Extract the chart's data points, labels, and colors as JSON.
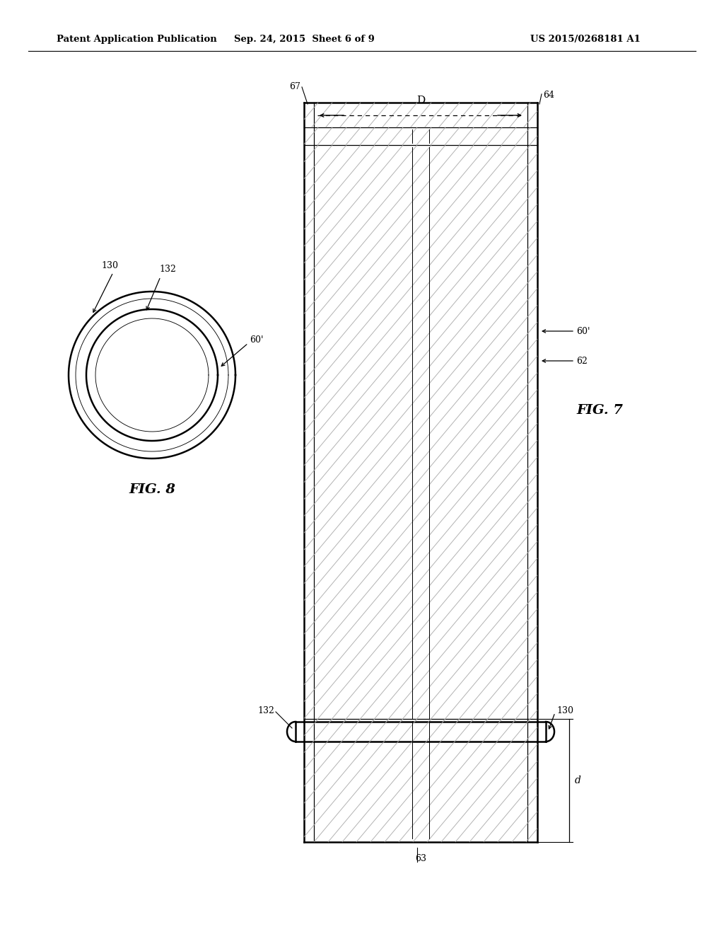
{
  "bg_color": "#ffffff",
  "header_text_left": "Patent Application Publication",
  "header_text_mid": "Sep. 24, 2015  Sheet 6 of 9",
  "header_text_right": "US 2015/0268181 A1",
  "fig7_label": "FIG. 7",
  "fig8_label": "FIG. 8",
  "line_color": "#000000",
  "hatch_line_color": "#aaaaaa",
  "fontsize_header": 9.5,
  "fontsize_labels": 9,
  "fontsize_fig": 12
}
